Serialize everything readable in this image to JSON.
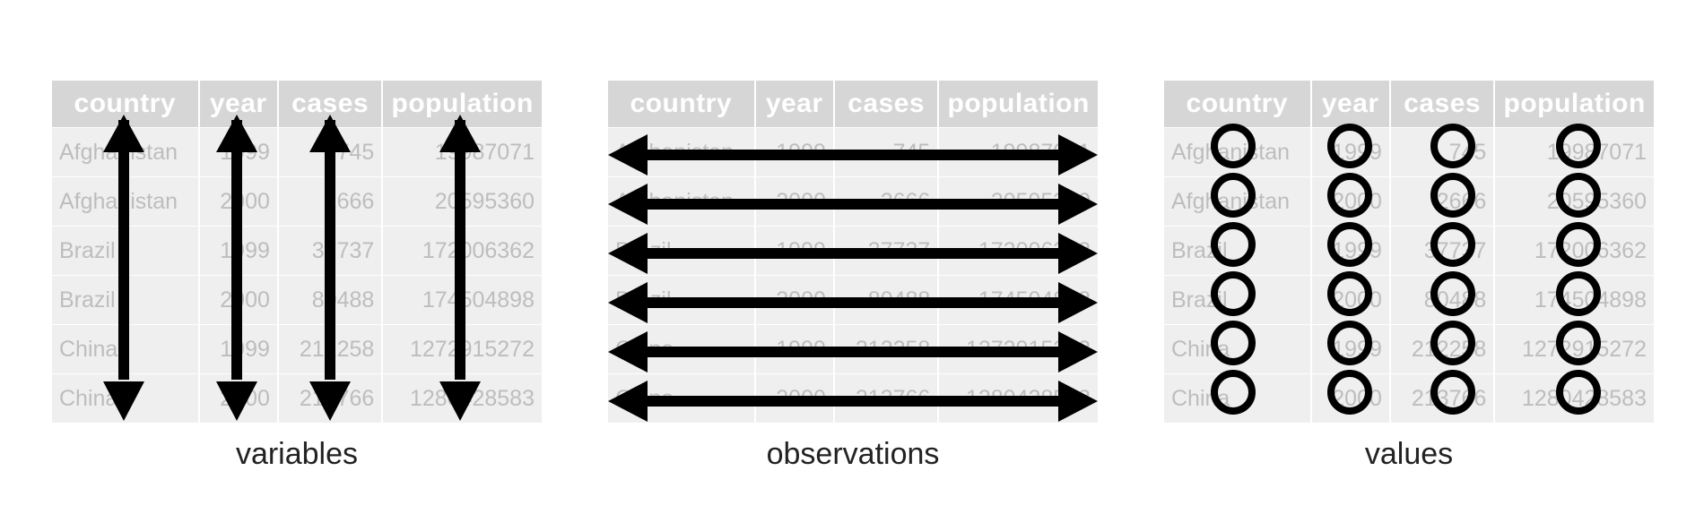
{
  "columns": [
    "country",
    "year",
    "cases",
    "population"
  ],
  "rows": [
    [
      "Afghanistan",
      "1999",
      "745",
      "19987071"
    ],
    [
      "Afghanistan",
      "2000",
      "2666",
      "20595360"
    ],
    [
      "Brazil",
      "1999",
      "37737",
      "172006362"
    ],
    [
      "Brazil",
      "2000",
      "80488",
      "174504898"
    ],
    [
      "China",
      "1999",
      "212258",
      "1272915272"
    ],
    [
      "China",
      "2000",
      "213766",
      "1280428583"
    ]
  ],
  "panels": [
    {
      "caption": "variables",
      "annotation": "vertical double-headed arrows"
    },
    {
      "caption": "observations",
      "annotation": "horizontal double-headed arrows"
    },
    {
      "caption": "values",
      "annotation": "circles"
    }
  ],
  "colors": {
    "header_bg": "#d6d6d6",
    "cell_bg": "#eeefee",
    "cell_text": "#bdbdbd",
    "mark": "#000000"
  }
}
